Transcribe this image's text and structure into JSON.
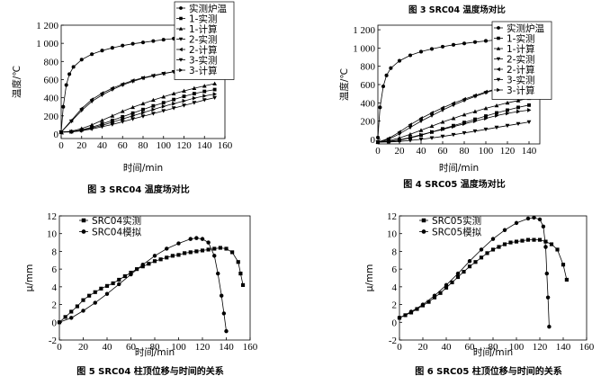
{
  "top_caption": "图 3   SRC04 温度场对比",
  "chart_data": [
    {
      "type": "line",
      "title": "",
      "caption": "图 3   SRC04 温度场对比",
      "xlabel": "时间/min",
      "ylabel": "温度/℃",
      "xlim": [
        0,
        160
      ],
      "ylim": [
        -50,
        1200
      ],
      "xticks": [
        0,
        20,
        40,
        60,
        80,
        100,
        120,
        140,
        160
      ],
      "yticks": [
        0,
        200,
        400,
        600,
        800,
        1000,
        1200
      ],
      "ytick_labels": [
        "0",
        "200",
        "400",
        "600",
        "800",
        "1 000",
        "1 200"
      ],
      "grid": false,
      "legend": "top-right",
      "series": [
        {
          "name": "实测炉温",
          "marker": "circle",
          "x": [
            0,
            2,
            5,
            8,
            12,
            20,
            30,
            40,
            50,
            60,
            70,
            80,
            90,
            100,
            110,
            120,
            130,
            140,
            150
          ],
          "y": [
            20,
            300,
            540,
            660,
            740,
            820,
            880,
            920,
            950,
            975,
            995,
            1010,
            1025,
            1040,
            1052,
            1062,
            1070,
            1078,
            1085
          ]
        },
        {
          "name": "1-实测",
          "marker": "square",
          "x": [
            0,
            10,
            20,
            30,
            40,
            50,
            60,
            70,
            80,
            90,
            100,
            110,
            120,
            130,
            140,
            150
          ],
          "y": [
            20,
            25,
            45,
            75,
            110,
            150,
            190,
            230,
            270,
            310,
            345,
            380,
            415,
            445,
            470,
            490
          ]
        },
        {
          "name": "1-计算",
          "marker": "tri-up",
          "x": [
            0,
            10,
            20,
            30,
            40,
            50,
            60,
            70,
            80,
            90,
            100,
            110,
            120,
            130,
            140,
            150
          ],
          "y": [
            20,
            30,
            60,
            100,
            150,
            200,
            250,
            295,
            335,
            375,
            410,
            445,
            475,
            505,
            530,
            555
          ]
        },
        {
          "name": "2-实测",
          "marker": "tri-down",
          "x": [
            0,
            10,
            20,
            30,
            40,
            50,
            60,
            70,
            80,
            90,
            100,
            110,
            120,
            130,
            140,
            150
          ],
          "y": [
            20,
            140,
            260,
            360,
            430,
            490,
            540,
            580,
            615,
            640,
            665,
            685,
            705,
            720,
            740,
            760
          ]
        },
        {
          "name": "2-计算",
          "marker": "tri-left",
          "x": [
            0,
            10,
            20,
            30,
            40,
            50,
            60,
            70,
            80,
            90,
            100,
            110,
            120,
            130,
            140,
            150
          ],
          "y": [
            20,
            150,
            280,
            380,
            450,
            505,
            550,
            590,
            620,
            645,
            668,
            688,
            705,
            720,
            735,
            750
          ]
        },
        {
          "name": "3-实测",
          "marker": "tri-down-filled",
          "x": [
            0,
            10,
            20,
            30,
            40,
            50,
            60,
            70,
            80,
            90,
            100,
            110,
            120,
            130,
            140,
            150
          ],
          "y": [
            20,
            22,
            35,
            55,
            80,
            105,
            135,
            165,
            195,
            225,
            255,
            285,
            315,
            345,
            375,
            400
          ]
        },
        {
          "name": "3-计算",
          "marker": "tri-right",
          "x": [
            0,
            10,
            20,
            30,
            40,
            50,
            60,
            70,
            80,
            90,
            100,
            110,
            120,
            130,
            140,
            150
          ],
          "y": [
            20,
            25,
            40,
            65,
            95,
            130,
            165,
            200,
            235,
            270,
            305,
            335,
            365,
            395,
            420,
            440
          ]
        }
      ]
    },
    {
      "type": "line",
      "title": "",
      "caption": "图 4   SRC05 温度场对比",
      "xlabel": "时间/min",
      "ylabel": "温度/℃",
      "xlim": [
        0,
        150
      ],
      "ylim": [
        -50,
        1250
      ],
      "xticks": [
        0,
        20,
        40,
        60,
        80,
        100,
        120,
        140
      ],
      "yticks": [
        0,
        200,
        400,
        600,
        800,
        1000,
        1200
      ],
      "ytick_labels": [
        "0",
        "200",
        "400",
        "600",
        "800",
        "1 000",
        "1 200"
      ],
      "grid": false,
      "legend": "top-right",
      "series": [
        {
          "name": "实测炉温",
          "marker": "circle",
          "x": [
            0,
            2,
            5,
            8,
            12,
            20,
            30,
            40,
            50,
            60,
            70,
            80,
            90,
            100,
            110,
            120,
            130,
            140
          ],
          "y": [
            20,
            350,
            580,
            700,
            780,
            860,
            920,
            960,
            990,
            1015,
            1035,
            1050,
            1065,
            1078,
            1088,
            1098,
            1105,
            1110
          ]
        },
        {
          "name": "1-实测",
          "marker": "square",
          "x": [
            0,
            10,
            20,
            30,
            40,
            50,
            60,
            70,
            80,
            90,
            100,
            110,
            120,
            130,
            140
          ],
          "y": [
            -30,
            -25,
            -10,
            15,
            45,
            80,
            115,
            150,
            185,
            220,
            255,
            290,
            320,
            350,
            375
          ]
        },
        {
          "name": "1-计算",
          "marker": "tri-up",
          "x": [
            0,
            10,
            20,
            30,
            40,
            50,
            60,
            70,
            80,
            90,
            100,
            110,
            120,
            130,
            140
          ],
          "y": [
            -30,
            -15,
            15,
            55,
            100,
            145,
            190,
            230,
            270,
            305,
            340,
            370,
            400,
            425,
            450
          ]
        },
        {
          "name": "2-实测",
          "marker": "tri-down",
          "x": [
            0,
            10,
            20,
            30,
            40,
            50,
            60,
            70,
            80,
            90,
            100,
            110,
            120,
            130,
            140
          ],
          "y": [
            -30,
            0,
            60,
            130,
            200,
            260,
            320,
            375,
            425,
            470,
            510,
            550,
            585,
            615,
            640
          ]
        },
        {
          "name": "2-计算",
          "marker": "tri-left",
          "x": [
            0,
            10,
            20,
            30,
            40,
            50,
            60,
            70,
            80,
            90,
            100,
            110,
            120,
            130,
            140
          ],
          "y": [
            -30,
            10,
            80,
            160,
            230,
            290,
            345,
            395,
            440,
            480,
            520,
            555,
            590,
            620,
            650
          ]
        },
        {
          "name": "3-实测",
          "marker": "tri-down-filled",
          "x": [
            0,
            10,
            20,
            30,
            40,
            50,
            60,
            70,
            80,
            90,
            100,
            110,
            120,
            130,
            140
          ],
          "y": [
            -30,
            -28,
            -22,
            -12,
            0,
            15,
            32,
            50,
            70,
            90,
            110,
            130,
            150,
            170,
            190
          ]
        },
        {
          "name": "3-计算",
          "marker": "tri-right",
          "x": [
            0,
            10,
            20,
            30,
            40,
            50,
            60,
            70,
            80,
            90,
            100,
            110,
            120,
            130,
            140
          ],
          "y": [
            -30,
            -22,
            -5,
            20,
            50,
            80,
            110,
            140,
            170,
            200,
            230,
            260,
            285,
            305,
            320
          ]
        }
      ]
    },
    {
      "type": "line",
      "title": "",
      "caption": "图 5   SRC04 柱顶位移与时间的关系",
      "xlabel": "时间/min",
      "ylabel": "μ/mm",
      "xlim": [
        0,
        160
      ],
      "ylim": [
        -2,
        12
      ],
      "xticks": [
        0,
        20,
        40,
        60,
        80,
        100,
        120,
        140,
        160
      ],
      "yticks": [
        -2,
        0,
        2,
        4,
        6,
        8,
        10,
        12
      ],
      "grid": false,
      "legend": "top-left",
      "series": [
        {
          "name": "SRC04实测",
          "marker": "square",
          "x": [
            0,
            5,
            10,
            15,
            20,
            25,
            30,
            35,
            40,
            45,
            50,
            55,
            60,
            65,
            70,
            75,
            80,
            85,
            90,
            95,
            100,
            105,
            110,
            115,
            120,
            125,
            130,
            135,
            140,
            145,
            150,
            152,
            154
          ],
          "y": [
            0,
            0.6,
            1.2,
            1.8,
            2.5,
            3.0,
            3.4,
            3.8,
            4.1,
            4.4,
            4.8,
            5.2,
            5.6,
            6.0,
            6.3,
            6.6,
            6.9,
            7.1,
            7.3,
            7.5,
            7.6,
            7.8,
            7.9,
            8.0,
            8.1,
            8.2,
            8.3,
            8.4,
            8.3,
            7.9,
            6.8,
            5.5,
            4.2
          ]
        },
        {
          "name": "SRC04模拟",
          "marker": "circle",
          "x": [
            0,
            10,
            20,
            30,
            40,
            50,
            60,
            70,
            80,
            90,
            100,
            110,
            115,
            120,
            125,
            130,
            133,
            136,
            138,
            140
          ],
          "y": [
            0,
            0.5,
            1.3,
            2.2,
            3.2,
            4.3,
            5.4,
            6.5,
            7.5,
            8.3,
            8.9,
            9.4,
            9.5,
            9.4,
            9.0,
            7.5,
            5.5,
            3.0,
            1.0,
            -1.0
          ]
        }
      ]
    },
    {
      "type": "line",
      "title": "",
      "caption": "图 6   SRC05 柱顶位移与时间的关系",
      "xlabel": "时间/min",
      "ylabel": "μ/mm",
      "xlim": [
        0,
        160
      ],
      "ylim": [
        -2,
        12
      ],
      "xticks": [
        0,
        20,
        40,
        60,
        80,
        100,
        120,
        140,
        160
      ],
      "yticks": [
        -2,
        0,
        2,
        4,
        6,
        8,
        10,
        12
      ],
      "grid": false,
      "legend": "top-left",
      "series": [
        {
          "name": "SRC05实测",
          "marker": "square",
          "x": [
            0,
            5,
            10,
            15,
            20,
            25,
            30,
            35,
            40,
            45,
            50,
            55,
            60,
            65,
            70,
            75,
            80,
            85,
            90,
            95,
            100,
            105,
            110,
            115,
            120,
            125,
            130,
            135,
            140,
            143
          ],
          "y": [
            0.5,
            0.8,
            1.1,
            1.5,
            1.9,
            2.3,
            2.8,
            3.3,
            3.9,
            4.5,
            5.1,
            5.7,
            6.3,
            6.8,
            7.3,
            7.8,
            8.2,
            8.5,
            8.8,
            9.0,
            9.1,
            9.2,
            9.3,
            9.3,
            9.3,
            9.1,
            8.8,
            8.2,
            6.5,
            4.8
          ]
        },
        {
          "name": "SRC05模拟",
          "marker": "circle",
          "x": [
            0,
            10,
            20,
            30,
            40,
            50,
            60,
            70,
            80,
            90,
            100,
            110,
            115,
            120,
            123,
            125,
            126,
            127,
            128
          ],
          "y": [
            0.5,
            1.2,
            2.0,
            3.0,
            4.2,
            5.5,
            6.9,
            8.2,
            9.4,
            10.4,
            11.2,
            11.7,
            11.8,
            11.6,
            10.8,
            8.5,
            5.5,
            2.8,
            -0.5
          ]
        }
      ]
    }
  ]
}
